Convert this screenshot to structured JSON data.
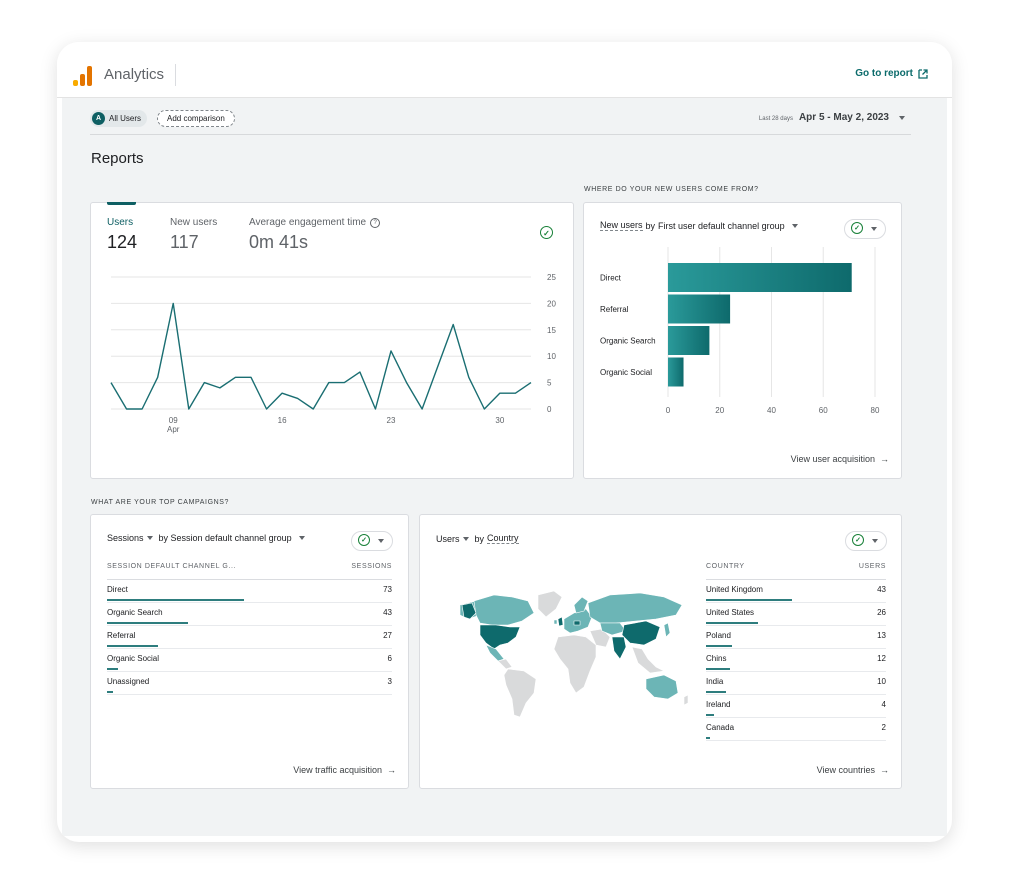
{
  "app": {
    "title": "Analytics",
    "goto_report": "Go to report",
    "logo_colors": [
      "#F9AB00",
      "#E37400",
      "#E37400"
    ]
  },
  "filters": {
    "segment_avatar": "A",
    "segment_label": "All Users",
    "add_comparison": "Add comparison",
    "date_label": "Last 28 days",
    "date_range": "Apr 5 - May 2, 2023"
  },
  "page_title": "Reports",
  "overview": {
    "metrics": [
      {
        "label": "Users",
        "value": "124"
      },
      {
        "label": "New users",
        "value": "117"
      },
      {
        "label": "Average engagement time",
        "value": "0m 41s"
      }
    ]
  },
  "acquisition_section_label": "WHERE DO YOUR NEW USERS COME FROM?",
  "acquisition_card": {
    "metric": "New users",
    "dimension_prefix": "by",
    "dimension": "First user default channel group",
    "view_link": "View user acquisition"
  },
  "campaigns_section_label": "WHAT ARE YOUR TOP CAMPAIGNS?",
  "sessions_card": {
    "metric": "Sessions",
    "dimension": "by Session default channel group",
    "col_dimension": "SESSION DEFAULT CHANNEL G...",
    "col_metric": "SESSIONS",
    "rows": [
      {
        "label": "Direct",
        "value": "73",
        "share": 73
      },
      {
        "label": "Organic Search",
        "value": "43",
        "share": 43
      },
      {
        "label": "Referral",
        "value": "27",
        "share": 27
      },
      {
        "label": "Organic Social",
        "value": "6",
        "share": 6
      },
      {
        "label": "Unassigned",
        "value": "3",
        "share": 3
      }
    ],
    "max": 73,
    "view_link": "View traffic acquisition"
  },
  "country_card": {
    "metric": "Users",
    "dimension_prefix": "by",
    "dimension": "Country",
    "col_dimension": "COUNTRY",
    "col_metric": "USERS",
    "rows": [
      {
        "label": "United Kingdom",
        "value": "43",
        "share": 43
      },
      {
        "label": "United States",
        "value": "26",
        "share": 26
      },
      {
        "label": "Poland",
        "value": "13",
        "share": 13
      },
      {
        "label": "Chins",
        "value": "12",
        "share": 12
      },
      {
        "label": "India",
        "value": "10",
        "share": 10
      },
      {
        "label": "Ireland",
        "value": "4",
        "share": 4
      },
      {
        "label": "Canada",
        "value": "2",
        "share": 2
      }
    ],
    "max": 43,
    "view_link": "View countries",
    "map_colors": {
      "dark": "#0e6a6c",
      "light": "#6cb5b6",
      "none": "#d9dadb"
    }
  },
  "chart_data": [
    {
      "type": "line",
      "x": [
        "Apr 5",
        "Apr 6",
        "Apr 7",
        "Apr 8",
        "Apr 9",
        "Apr 10",
        "Apr 11",
        "Apr 12",
        "Apr 13",
        "Apr 14",
        "Apr 15",
        "Apr 16",
        "Apr 17",
        "Apr 18",
        "Apr 19",
        "Apr 20",
        "Apr 21",
        "Apr 22",
        "Apr 23",
        "Apr 24",
        "Apr 25",
        "Apr 26",
        "Apr 27",
        "Apr 28",
        "Apr 29",
        "Apr 30",
        "May 1",
        "May 2"
      ],
      "series": [
        {
          "values": [
            5,
            0,
            0,
            6,
            20,
            0,
            5,
            4,
            6,
            6,
            0,
            3,
            2,
            0,
            5,
            5,
            7,
            0,
            11,
            5,
            0,
            8,
            16,
            6,
            0,
            3,
            3,
            5
          ]
        }
      ],
      "xticks": [
        {
          "label": "09",
          "sub": "Apr",
          "index": 4
        },
        {
          "label": "16",
          "index": 11
        },
        {
          "label": "23",
          "index": 18
        },
        {
          "label": "30",
          "index": 25
        }
      ],
      "yticks": [
        "0",
        "5",
        "10",
        "15",
        "20",
        "25"
      ],
      "ylim": [
        0,
        25
      ],
      "color": "#1a6e72",
      "grid": true
    },
    {
      "type": "bar",
      "orientation": "horizontal",
      "categories": [
        "Direct",
        "Referral",
        "Organic Search",
        "Organic Social"
      ],
      "values": [
        71,
        24,
        16,
        6
      ],
      "xticks": [
        "0",
        "20",
        "40",
        "60",
        "80"
      ],
      "xlim": [
        0,
        80
      ],
      "color": "#0e6a6c",
      "grid": true
    }
  ]
}
